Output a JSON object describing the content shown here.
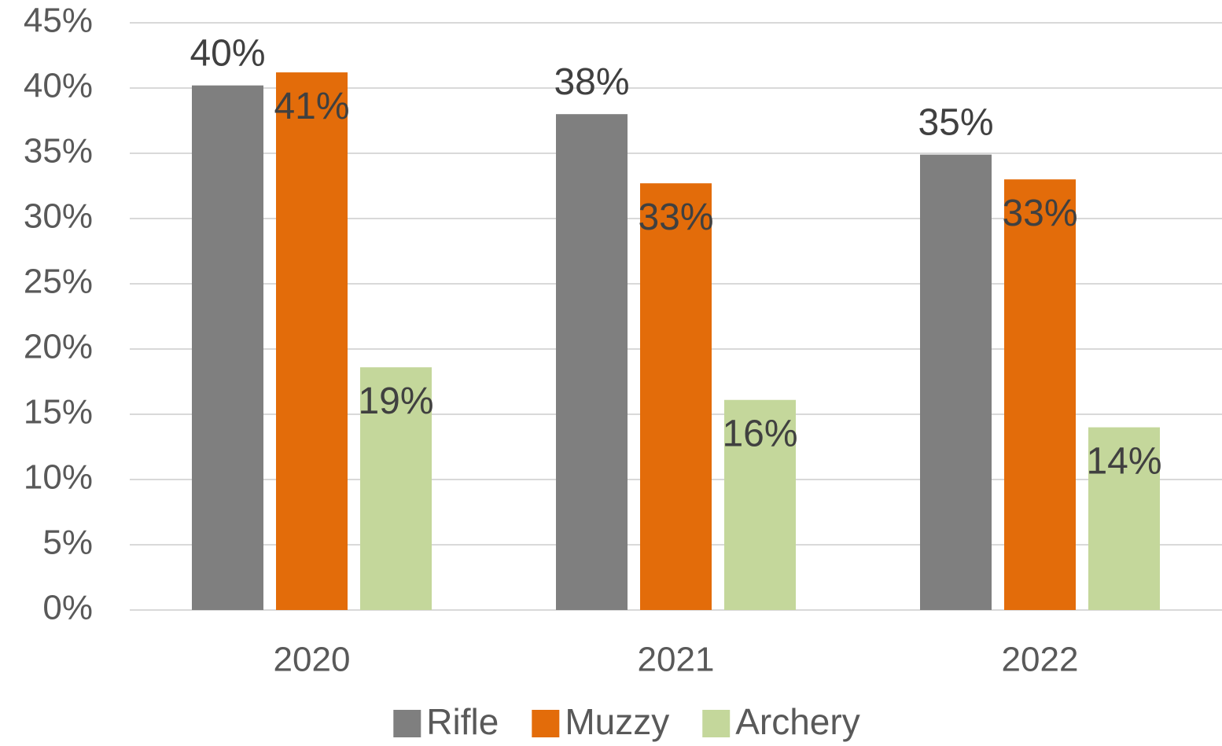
{
  "chart_data": {
    "type": "bar",
    "categories": [
      "2020",
      "2021",
      "2022"
    ],
    "series": [
      {
        "name": "Rifle",
        "color": "#7f7f7f",
        "values": [
          40.2,
          38.0,
          34.9
        ],
        "value_labels": [
          "40%",
          "38%",
          "35%"
        ]
      },
      {
        "name": "Muzzy",
        "color": "#e36c0a",
        "values": [
          41.2,
          32.7,
          33.0
        ],
        "value_labels": [
          "41%",
          "33%",
          "33%"
        ]
      },
      {
        "name": "Archery",
        "color": "#c4d79b",
        "values": [
          18.6,
          16.1,
          14.0
        ],
        "value_labels": [
          "19%",
          "16%",
          "14%"
        ]
      }
    ],
    "ylim": [
      0,
      45
    ],
    "yticks": [
      {
        "value": 0,
        "label": "0%"
      },
      {
        "value": 5,
        "label": "5%"
      },
      {
        "value": 10,
        "label": "10%"
      },
      {
        "value": 15,
        "label": "15%"
      },
      {
        "value": 20,
        "label": "20%"
      },
      {
        "value": 25,
        "label": "25%"
      },
      {
        "value": 30,
        "label": "30%"
      },
      {
        "value": 35,
        "label": "35%"
      },
      {
        "value": 40,
        "label": "40%"
      },
      {
        "value": 45,
        "label": "45%"
      }
    ],
    "grid": true,
    "legend": "bottom"
  }
}
